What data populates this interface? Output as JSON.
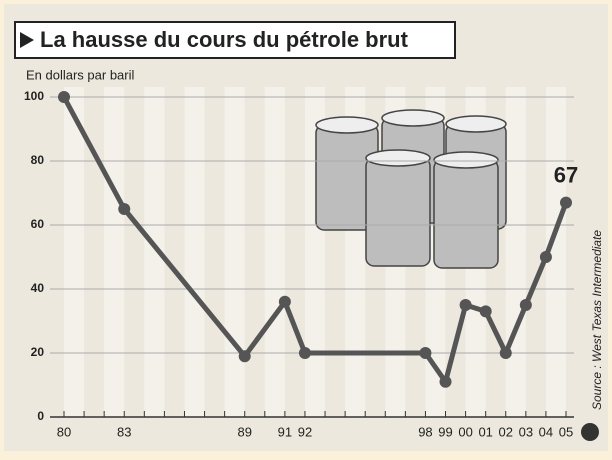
{
  "chart_data": {
    "type": "line",
    "title": "La hausse du cours du pétrole brut",
    "y_label": "En dollars par baril",
    "source": "Source : West Texas Intermediate",
    "x": [
      "80",
      "83",
      "89",
      "91",
      "92",
      "98",
      "99",
      "00",
      "01",
      "02",
      "03",
      "04",
      "05"
    ],
    "values": [
      100,
      65,
      19,
      36,
      20,
      20,
      11,
      35,
      33,
      20,
      35,
      50,
      67
    ],
    "color": "#555555",
    "ylim": [
      0,
      100
    ],
    "yticks": [
      0,
      20,
      40,
      60,
      80,
      100
    ],
    "grid": true
  }
}
